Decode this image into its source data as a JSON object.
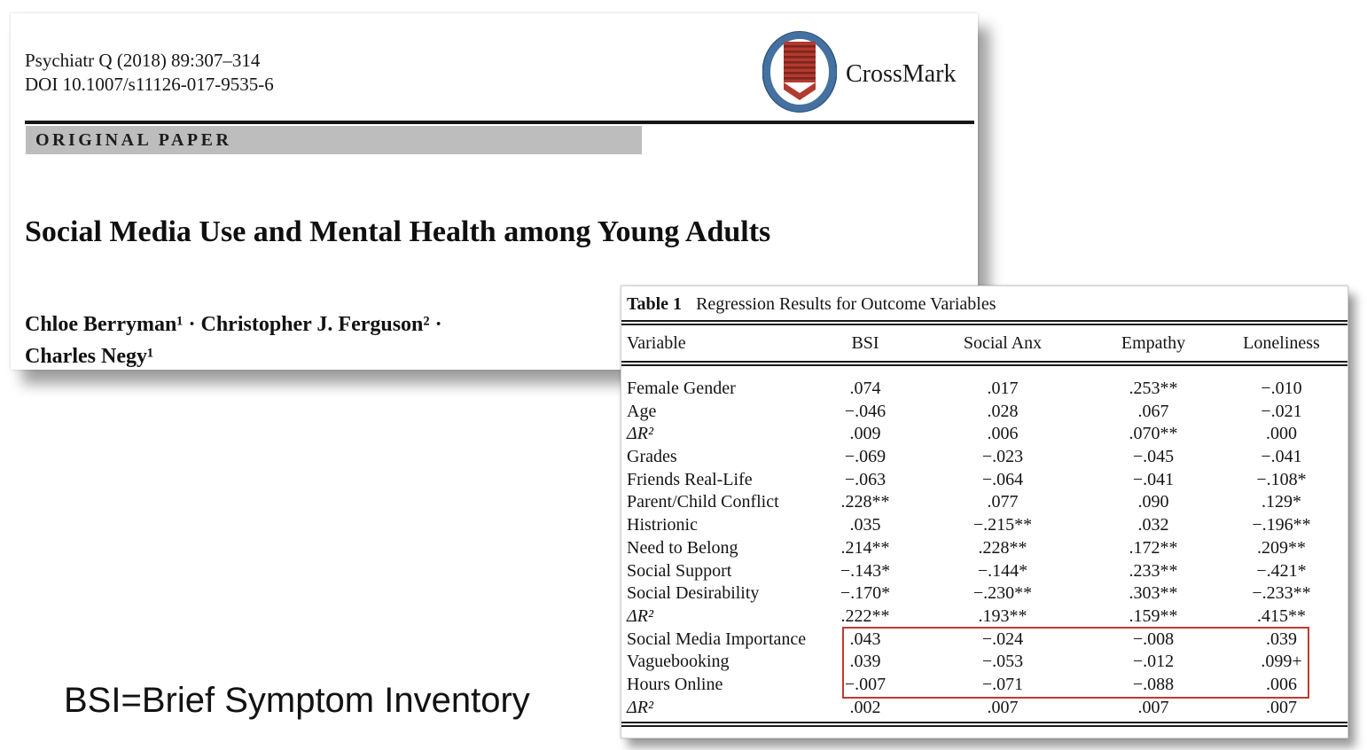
{
  "paper_card": {
    "citation_line1": "Psychiatr Q (2018) 89:307–314",
    "citation_line2": "DOI 10.1007/s11126-017-9535-6",
    "crossmark": {
      "label": "CrossMark",
      "ring_color": "#44719f",
      "ribbon_color": "#b23a2f",
      "stripe_color": "#7e251d"
    },
    "section_label": "ORIGINAL PAPER",
    "section_bar_color": "#bdbdbd",
    "title": "Social Media Use and Mental Health among Young Adults",
    "authors_line1": "Chloe Berryman¹ · Christopher J. Ferguson² ·",
    "authors_line2": "Charles Negy¹"
  },
  "table_card": {
    "caption_label": "Table 1",
    "caption_text": "Regression Results for Outcome Variables",
    "columns": [
      "Variable",
      "BSI",
      "Social Anx",
      "Empathy",
      "Loneliness"
    ],
    "rows": [
      {
        "label": "Female Gender",
        "values": [
          ".074",
          ".017",
          ".253**",
          "−.010"
        ]
      },
      {
        "label": "Age",
        "values": [
          "−.046",
          ".028",
          ".067",
          "−.021"
        ]
      },
      {
        "label": "ΔR²",
        "values": [
          ".009",
          ".006",
          ".070**",
          ".000"
        ]
      },
      {
        "label": "Grades",
        "values": [
          "−.069",
          "−.023",
          "−.045",
          "−.041"
        ]
      },
      {
        "label": "Friends Real-Life",
        "values": [
          "−.063",
          "−.064",
          "−.041",
          "−.108*"
        ]
      },
      {
        "label": "Parent/Child Conflict",
        "values": [
          ".228**",
          ".077",
          ".090",
          ".129*"
        ]
      },
      {
        "label": "Histrionic",
        "values": [
          ".035",
          "−.215**",
          ".032",
          "−.196**"
        ]
      },
      {
        "label": "Need to Belong",
        "values": [
          ".214**",
          ".228**",
          ".172**",
          ".209**"
        ]
      },
      {
        "label": "Social Support",
        "values": [
          "−.143*",
          "−.144*",
          ".233**",
          "−.421*"
        ]
      },
      {
        "label": "Social Desirability",
        "values": [
          "−.170*",
          "−.230**",
          ".303**",
          "−.233**"
        ]
      },
      {
        "label": "ΔR²",
        "values": [
          ".222**",
          ".193**",
          ".159**",
          ".415**"
        ]
      },
      {
        "label": "Social Media Importance",
        "values": [
          ".043",
          "−.024",
          "−.008",
          ".039"
        ]
      },
      {
        "label": "Vaguebooking",
        "values": [
          ".039",
          "−.053",
          "−.012",
          ".099+"
        ]
      },
      {
        "label": "Hours Online",
        "values": [
          "−.007",
          "−.071",
          "−.088",
          ".006"
        ]
      },
      {
        "label": "ΔR²",
        "values": [
          ".002",
          ".007",
          ".007",
          ".007"
        ]
      }
    ],
    "highlight_box": {
      "color": "#bf3a31",
      "highlighted_rows": [
        "Social Media Importance",
        "Vaguebooking",
        "Hours Online"
      ]
    }
  },
  "annotation": {
    "text": "BSI=Brief Symptom Inventory"
  }
}
